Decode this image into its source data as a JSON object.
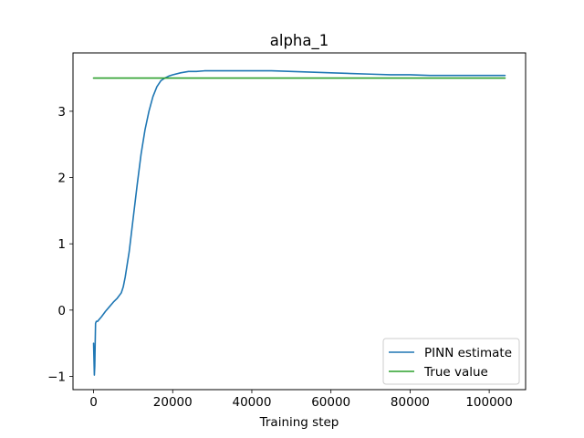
{
  "chart_data": {
    "type": "line",
    "title": "alpha_1",
    "xlabel": "Training step",
    "ylabel": "",
    "xlim": [
      -5200,
      109200
    ],
    "ylim": [
      -1.2,
      3.88
    ],
    "xticks": [
      0,
      20000,
      40000,
      60000,
      80000,
      100000
    ],
    "xtick_labels": [
      "0",
      "20000",
      "40000",
      "60000",
      "80000",
      "100000"
    ],
    "yticks": [
      -1,
      0,
      1,
      2,
      3
    ],
    "ytick_labels": [
      "−1",
      "0",
      "1",
      "2",
      "3"
    ],
    "grid": false,
    "legend_position": "lower-right",
    "series": [
      {
        "name": "PINN estimate",
        "color": "#1f77b4",
        "x": [
          0,
          200,
          300,
          500,
          700,
          1000,
          2000,
          3000,
          4000,
          5000,
          6000,
          7000,
          7500,
          8000,
          9000,
          10000,
          11000,
          12000,
          13000,
          14000,
          15000,
          16000,
          17000,
          18000,
          19000,
          20000,
          22000,
          24000,
          26000,
          28000,
          30000,
          35000,
          40000,
          45000,
          50000,
          55000,
          60000,
          65000,
          70000,
          75000,
          80000,
          85000,
          90000,
          95000,
          100000,
          104000
        ],
        "y": [
          -0.5,
          -0.98,
          -0.85,
          -0.2,
          -0.17,
          -0.17,
          -0.1,
          -0.02,
          0.05,
          0.12,
          0.18,
          0.26,
          0.35,
          0.5,
          0.88,
          1.38,
          1.88,
          2.35,
          2.72,
          3.0,
          3.22,
          3.37,
          3.46,
          3.5,
          3.53,
          3.55,
          3.58,
          3.6,
          3.6,
          3.61,
          3.61,
          3.61,
          3.61,
          3.61,
          3.6,
          3.59,
          3.58,
          3.57,
          3.56,
          3.55,
          3.55,
          3.54,
          3.54,
          3.54,
          3.54,
          3.54
        ]
      },
      {
        "name": "True value",
        "color": "#2ca02c",
        "x": [
          0,
          104000
        ],
        "y": [
          3.5,
          3.5
        ]
      }
    ]
  }
}
